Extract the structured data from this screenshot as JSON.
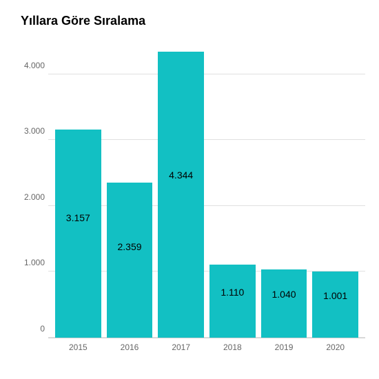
{
  "chart": {
    "type": "bar",
    "title": "Yıllara Göre Sıralama",
    "title_fontsize": 18,
    "title_fontweight": "bold",
    "categories": [
      "2015",
      "2016",
      "2017",
      "2018",
      "2019",
      "2020"
    ],
    "values": [
      3157,
      2359,
      4344,
      1110,
      1040,
      1001
    ],
    "value_labels": [
      "3.157",
      "2.359",
      "4.344",
      "1.110",
      "1.040",
      "1.001"
    ],
    "bar_color": "#12c0c3",
    "background_color": "#ffffff",
    "grid_color": "#e0e0e0",
    "axis_color": "#d0d0d0",
    "tick_color": "#666666",
    "label_color": "#000000",
    "ylim": [
      0,
      4500
    ],
    "yticks": [
      0,
      1000,
      2000,
      3000,
      4000
    ],
    "ytick_labels": [
      "0",
      "1.000",
      "2.000",
      "3.000",
      "4.000"
    ],
    "label_fontsize": 14,
    "tick_fontsize": 12,
    "bar_width": 0.88
  }
}
